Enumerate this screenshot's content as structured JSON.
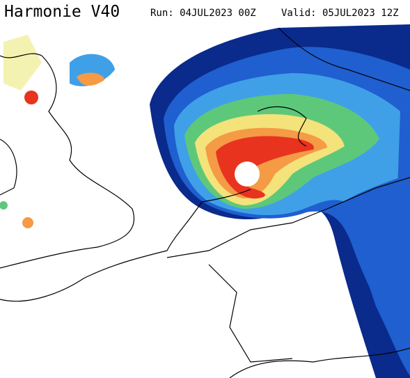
{
  "header": {
    "title": "Harmonie V40",
    "run": "Run: 04JUL2023 00Z",
    "valid": "Valid: 05JUL2023 12Z"
  }
}
